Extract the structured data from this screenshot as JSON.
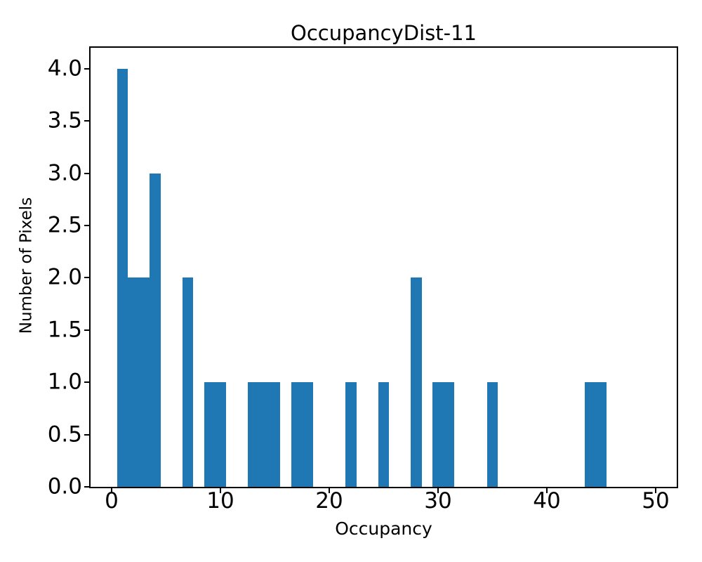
{
  "chart_data": {
    "type": "bar",
    "subtype": "histogram",
    "title": "OccupancyDist-11",
    "xlabel": "Occupancy",
    "ylabel": "Number of Pixels",
    "bar_color": "#1f77b4",
    "text_color": "#000000",
    "background_color": "#ffffff",
    "grid": false,
    "legend": null,
    "bin_width": 1,
    "bars": [
      {
        "x": 1,
        "count": 4
      },
      {
        "x": 2,
        "count": 2
      },
      {
        "x": 3,
        "count": 2
      },
      {
        "x": 4,
        "count": 3
      },
      {
        "x": 7,
        "count": 2
      },
      {
        "x": 9,
        "count": 1
      },
      {
        "x": 10,
        "count": 1
      },
      {
        "x": 13,
        "count": 1
      },
      {
        "x": 14,
        "count": 1
      },
      {
        "x": 15,
        "count": 1
      },
      {
        "x": 17,
        "count": 1
      },
      {
        "x": 18,
        "count": 1
      },
      {
        "x": 22,
        "count": 1
      },
      {
        "x": 25,
        "count": 1
      },
      {
        "x": 28,
        "count": 2
      },
      {
        "x": 30,
        "count": 1
      },
      {
        "x": 31,
        "count": 1
      },
      {
        "x": 35,
        "count": 1
      },
      {
        "x": 44,
        "count": 1
      },
      {
        "x": 45,
        "count": 1
      }
    ],
    "xlim": [
      -1.95,
      51.95
    ],
    "ylim": [
      0,
      4.2
    ],
    "xticks": [
      {
        "v": 0,
        "label": "0"
      },
      {
        "v": 10,
        "label": "10"
      },
      {
        "v": 20,
        "label": "20"
      },
      {
        "v": 30,
        "label": "30"
      },
      {
        "v": 40,
        "label": "40"
      },
      {
        "v": 50,
        "label": "50"
      }
    ],
    "yticks": [
      {
        "v": 0.0,
        "label": "0.0"
      },
      {
        "v": 0.5,
        "label": "0.5"
      },
      {
        "v": 1.0,
        "label": "1.0"
      },
      {
        "v": 1.5,
        "label": "1.5"
      },
      {
        "v": 2.0,
        "label": "2.0"
      },
      {
        "v": 2.5,
        "label": "2.5"
      },
      {
        "v": 3.0,
        "label": "3.0"
      },
      {
        "v": 3.5,
        "label": "3.5"
      },
      {
        "v": 4.0,
        "label": "4.0"
      }
    ]
  }
}
